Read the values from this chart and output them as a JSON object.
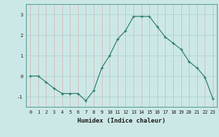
{
  "xlabel": "Humidex (Indice chaleur)",
  "x": [
    0,
    1,
    2,
    3,
    4,
    5,
    6,
    7,
    8,
    9,
    10,
    11,
    12,
    13,
    14,
    15,
    16,
    17,
    18,
    19,
    20,
    21,
    22,
    23
  ],
  "y": [
    0.0,
    0.0,
    -0.3,
    -0.6,
    -0.85,
    -0.85,
    -0.85,
    -1.2,
    -0.7,
    0.4,
    1.0,
    1.8,
    2.2,
    2.9,
    2.9,
    2.9,
    2.4,
    1.9,
    1.6,
    1.3,
    0.7,
    0.4,
    -0.05,
    -1.1
  ],
  "line_color": "#2d7d6e",
  "bg_color": "#cce8e6",
  "grid_color": "#aed4d2",
  "axis_color": "#5a9e95",
  "ylim": [
    -1.5,
    3.5
  ],
  "yticks": [
    -1,
    0,
    1,
    2,
    3
  ],
  "marker": "+"
}
